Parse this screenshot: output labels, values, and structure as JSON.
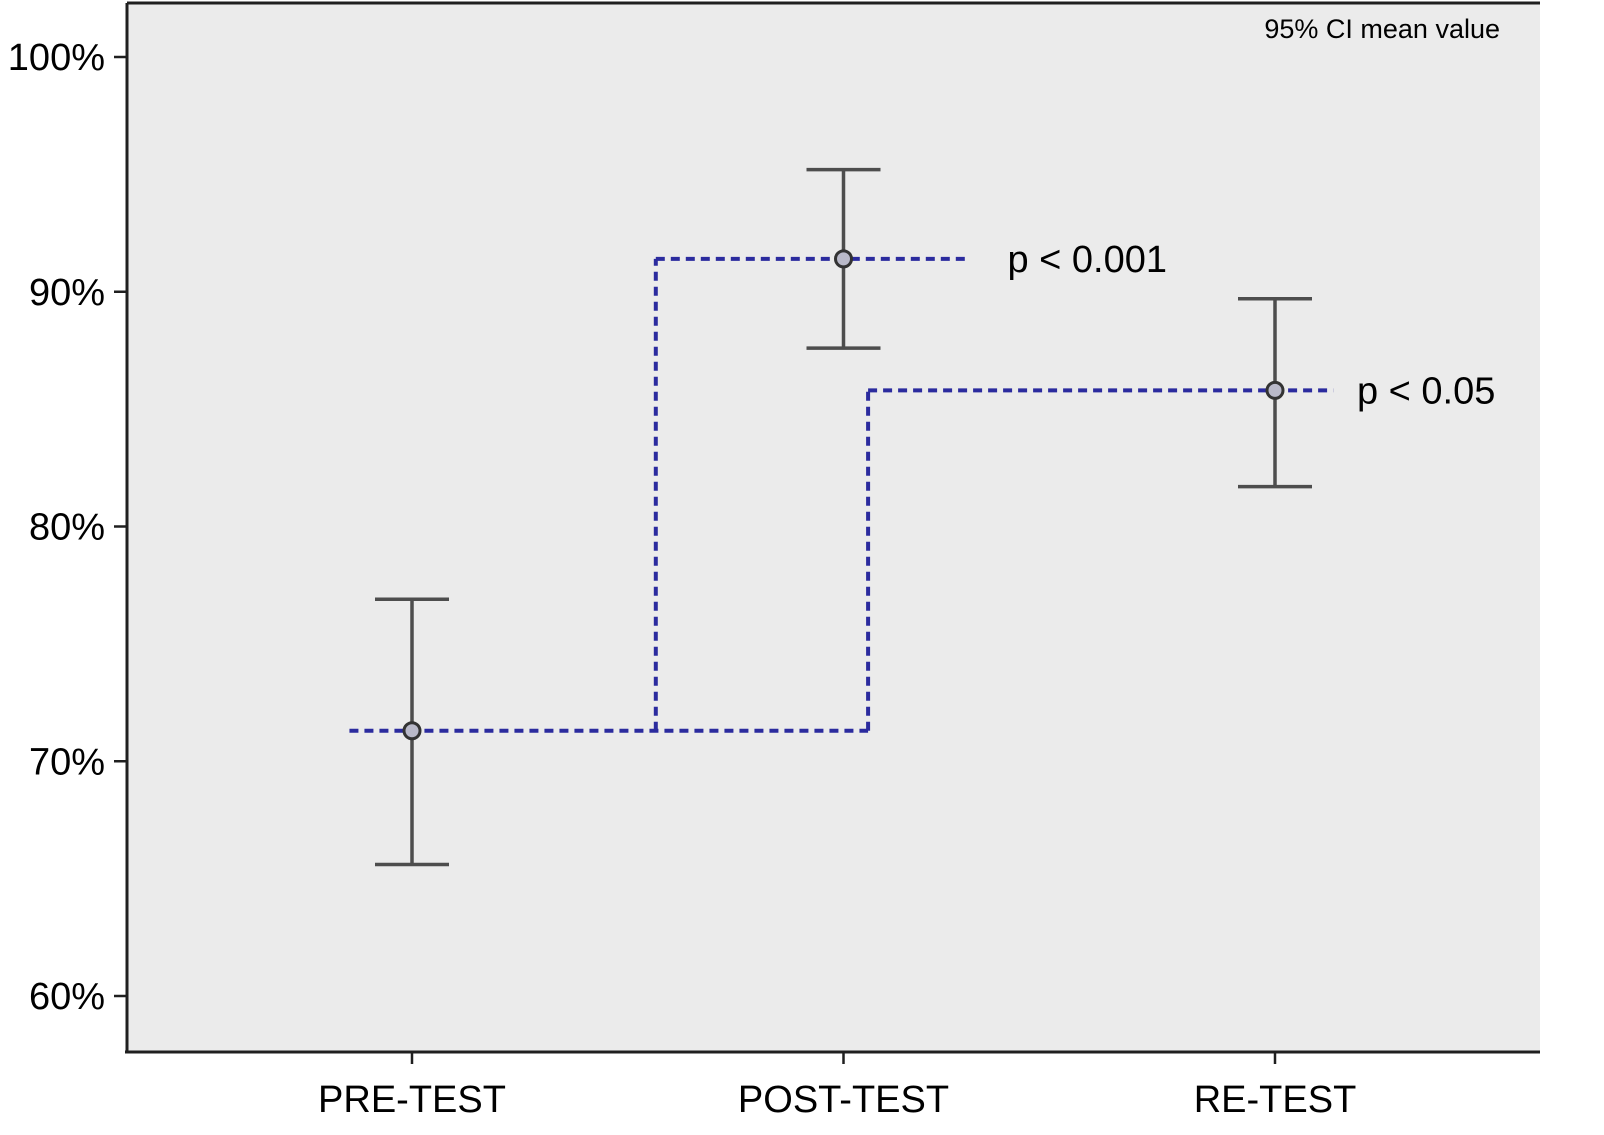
{
  "chart_data": {
    "type": "errorbar",
    "title": "",
    "note": "95% CI mean value",
    "xlabel": "",
    "ylabel": "",
    "categories": [
      "PRE-TEST",
      "POST-TEST",
      "RE-TEST"
    ],
    "points": [
      {
        "category": "PRE-TEST",
        "mean": 71.3,
        "ci_low": 65.6,
        "ci_high": 76.9
      },
      {
        "category": "POST-TEST",
        "mean": 91.4,
        "ci_low": 87.6,
        "ci_high": 95.2
      },
      {
        "category": "RE-TEST",
        "mean": 85.8,
        "ci_low": 81.7,
        "ci_high": 89.7
      }
    ],
    "y_ticks": [
      {
        "value": 60,
        "label": "60%"
      },
      {
        "value": 70,
        "label": "70%"
      },
      {
        "value": 80,
        "label": "80%"
      },
      {
        "value": 90,
        "label": "90%"
      },
      {
        "value": 100,
        "label": "100%"
      }
    ],
    "ylim": [
      57.6,
      102.3
    ],
    "grid": false,
    "legend_position": "top-right",
    "annotations": [
      {
        "label": "p < 0.001",
        "x": 1.38,
        "y": 91.4
      },
      {
        "label": "p < 0.05",
        "x": 2.19,
        "y": 85.8
      }
    ],
    "dashed_segments": [
      {
        "x1": -0.145,
        "y1": 71.3,
        "x2": 1.057,
        "y2": 71.3
      },
      {
        "x1": 0.565,
        "y1": 71.3,
        "x2": 0.565,
        "y2": 91.4
      },
      {
        "x1": 0.565,
        "y1": 91.4,
        "x2": 1.285,
        "y2": 91.4
      },
      {
        "x1": 1.057,
        "y1": 71.3,
        "x2": 1.057,
        "y2": 85.8
      },
      {
        "x1": 1.057,
        "y1": 85.8,
        "x2": 2.135,
        "y2": 85.8
      }
    ],
    "colors": {
      "panel": "#ebebeb",
      "axis": "#1f1f1f",
      "errorbar": "#4d4d4d",
      "marker_fill": "#b9b9c9",
      "marker_stroke": "#333333",
      "dashed": "#2b2b9e",
      "text": "#000000"
    }
  }
}
